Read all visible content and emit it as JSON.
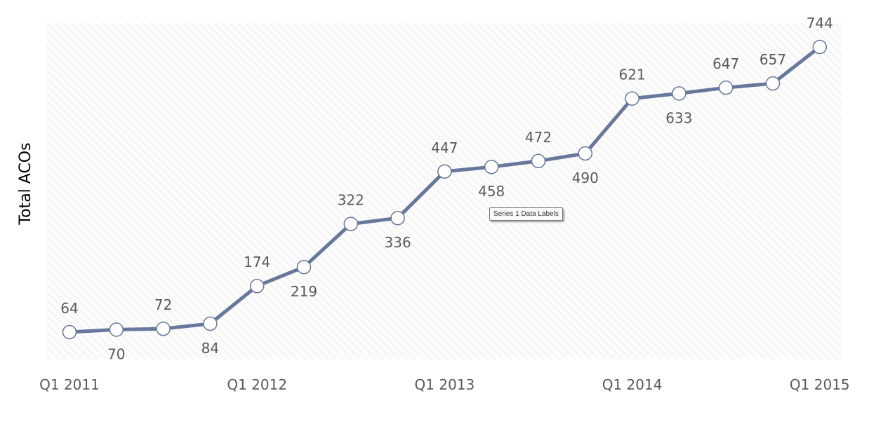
{
  "chart_data": {
    "type": "line",
    "ylabel": "Total ACOs",
    "xlabel": "",
    "x_tick_labels": [
      "Q1 2011",
      "Q1 2012",
      "Q1 2013",
      "Q1 2014",
      "Q1 2015"
    ],
    "series": [
      {
        "values": [
          64,
          70,
          72,
          84,
          174,
          219,
          322,
          336,
          447,
          458,
          472,
          490,
          621,
          633,
          647,
          657,
          744
        ],
        "color": "#68789C"
      }
    ],
    "ylim": [
      0,
      800
    ],
    "grid": false,
    "legend": "none",
    "plot_background": "hatched light gray"
  },
  "tooltip": {
    "text": "Series 1 Data Labels"
  }
}
